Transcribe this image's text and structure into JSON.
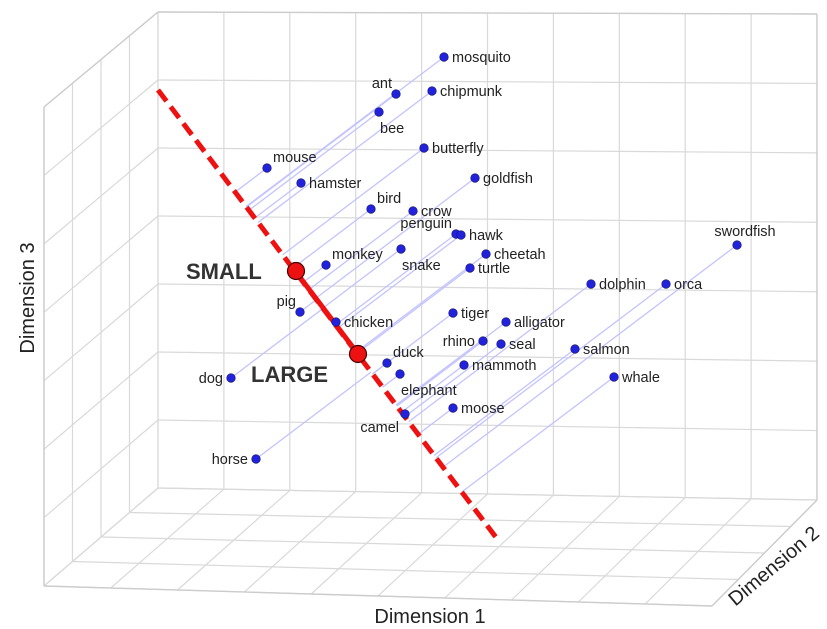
{
  "chart_data": {
    "type": "scatter",
    "projection": "3d",
    "xlabel": "Dimension 1",
    "ylabel": "Dimension 3",
    "zlabel": "Dimension 2",
    "grid": true,
    "axis_line": {
      "name": "size",
      "color": "#ee1111",
      "style": "dashed",
      "anchors": [
        {
          "label": "SMALL"
        },
        {
          "label": "LARGE"
        }
      ]
    },
    "points": [
      {
        "label": "mosquito"
      },
      {
        "label": "ant"
      },
      {
        "label": "chipmunk"
      },
      {
        "label": "bee"
      },
      {
        "label": "butterfly"
      },
      {
        "label": "mouse"
      },
      {
        "label": "hamster"
      },
      {
        "label": "goldfish"
      },
      {
        "label": "bird"
      },
      {
        "label": "crow"
      },
      {
        "label": "penguin"
      },
      {
        "label": "hawk"
      },
      {
        "label": "swordfish"
      },
      {
        "label": "cheetah"
      },
      {
        "label": "monkey"
      },
      {
        "label": "snake"
      },
      {
        "label": "turtle"
      },
      {
        "label": "dolphin"
      },
      {
        "label": "orca"
      },
      {
        "label": "pig"
      },
      {
        "label": "tiger"
      },
      {
        "label": "chicken"
      },
      {
        "label": "alligator"
      },
      {
        "label": "rhino"
      },
      {
        "label": "seal"
      },
      {
        "label": "salmon"
      },
      {
        "label": "duck"
      },
      {
        "label": "mammoth"
      },
      {
        "label": "dog"
      },
      {
        "label": "elephant"
      },
      {
        "label": "whale"
      },
      {
        "label": "moose"
      },
      {
        "label": "camel"
      },
      {
        "label": "horse"
      }
    ],
    "colors": {
      "points": "#2222dd",
      "projection": "#c3c3ff",
      "size_line": "#ee1111",
      "grid": "#d9d9d9"
    }
  }
}
